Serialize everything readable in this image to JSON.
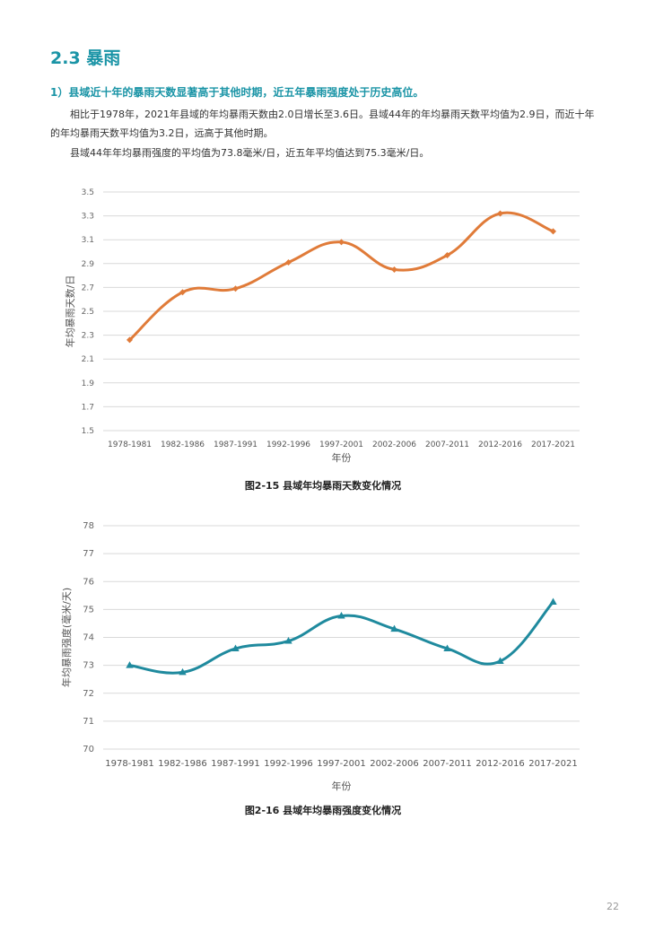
{
  "section": {
    "title": "2.3 暴雨"
  },
  "subheading": "1）县域近十年的暴雨天数显著高于其他时期，近五年暴雨强度处于历史高位。",
  "paragraphs": {
    "p1": "相比于1978年，2021年县域的年均暴雨天数由2.0日增长至3.6日。县域44年的年均暴雨天数平均值为2.9日，而近十年的年均暴雨天数平均值为3.2日，远高于其他时期。",
    "p2": "县域44年年均暴雨强度的平均值为73.8毫米/日，近五年平均值达到75.3毫米/日。"
  },
  "chart_data": [
    {
      "type": "line",
      "title": "图2-15 县域年均暴雨天数变化情况",
      "xlabel": "年份",
      "ylabel": "年均暴雨天数/日",
      "categories": [
        "1978-1981",
        "1982-1986",
        "1987-1991",
        "1992-1996",
        "1997-2001",
        "2002-2006",
        "2007-2011",
        "2012-2016",
        "2017-2021"
      ],
      "series": [
        {
          "name": "年均暴雨天数",
          "values": [
            2.26,
            2.66,
            2.69,
            2.91,
            3.08,
            2.85,
            2.97,
            3.32,
            3.17
          ]
        }
      ],
      "ylim": [
        1.5,
        3.5
      ],
      "yticks": [
        "1.5",
        "1.7",
        "1.9",
        "2.1",
        "2.3",
        "2.5",
        "2.7",
        "2.9",
        "3.1",
        "3.3",
        "3.5"
      ],
      "color": "#e07b39",
      "marker": "diamond",
      "grid": true
    },
    {
      "type": "line",
      "title": "图2-16 县域年均暴雨强度变化情况",
      "xlabel": "年份",
      "ylabel": "年均暴雨强度(毫米/天)",
      "categories": [
        "1978-1981",
        "1982-1986",
        "1987-1991",
        "1992-1996",
        "1997-2001",
        "2002-2006",
        "2007-2011",
        "2012-2016",
        "2017-2021"
      ],
      "series": [
        {
          "name": "年均暴雨强度",
          "values": [
            73.0,
            72.75,
            73.6,
            73.87,
            74.77,
            74.3,
            73.6,
            73.15,
            75.27
          ]
        }
      ],
      "ylim": [
        70,
        78
      ],
      "yticks": [
        "70",
        "71",
        "72",
        "73",
        "74",
        "75",
        "76",
        "77",
        "78"
      ],
      "color": "#1f8a9e",
      "marker": "triangle",
      "grid": true
    }
  ],
  "page_number": "22"
}
